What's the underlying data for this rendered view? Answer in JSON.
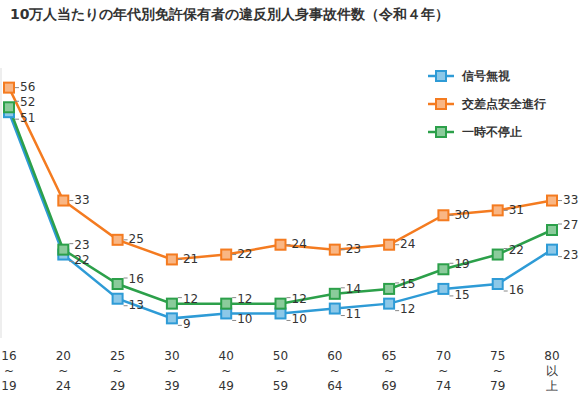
{
  "chart_data": {
    "type": "line",
    "title": "10万人当たりの年代別免許保有者の違反別人身事故件数（令和４年）",
    "categories": [
      "16~19",
      "20~24",
      "25~29",
      "30~39",
      "40~49",
      "50~59",
      "60~64",
      "65~69",
      "70~74",
      "75~79",
      "80以上"
    ],
    "series": [
      {
        "name": "信号無視",
        "color": "#2e9bd6",
        "marker": "square",
        "values": [
          51,
          22,
          13,
          9,
          10,
          10,
          11,
          12,
          15,
          16,
          23
        ]
      },
      {
        "name": "交差点安全進行",
        "color": "#f47b20",
        "marker": "square",
        "values": [
          56,
          33,
          25,
          21,
          22,
          24,
          23,
          24,
          30,
          31,
          33
        ]
      },
      {
        "name": "一時不停止",
        "color": "#2ca04a",
        "marker": "square",
        "values": [
          52,
          23,
          16,
          12,
          12,
          12,
          14,
          15,
          19,
          22,
          27
        ]
      }
    ],
    "ylim": [
      5,
      60
    ],
    "legend": "upper right",
    "data_labels": true,
    "tick_labels": "x"
  }
}
